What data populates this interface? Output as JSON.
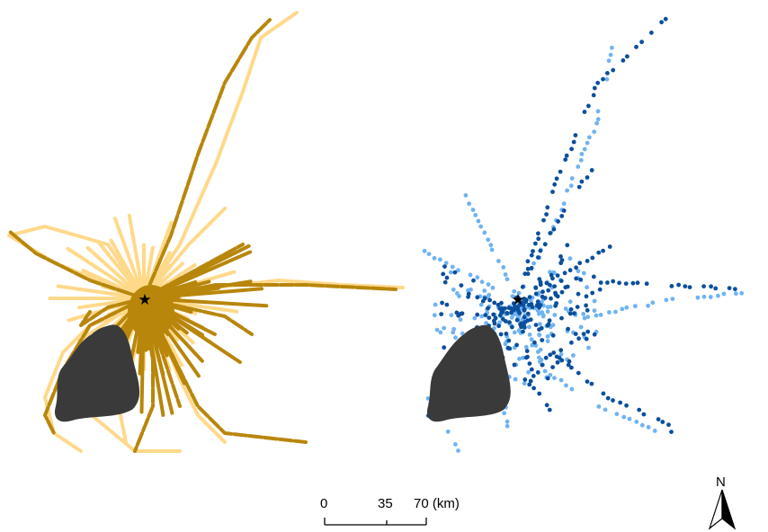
{
  "panels": [
    {
      "name": "left",
      "track_style": "lines",
      "colors": {
        "light": "#FFD98A",
        "dark": "#B8860B"
      },
      "star_symbol": "★"
    },
    {
      "name": "right",
      "track_style": "dots",
      "colors": {
        "light": "#6FB3F2",
        "dark": "#0B4F9C"
      },
      "star_symbol": "★"
    }
  ],
  "island": {
    "color": "#3A3A3A"
  },
  "scale_bar": {
    "ticks": [
      "0",
      "35",
      "70 (km)"
    ],
    "color": "#000000"
  },
  "north_arrow": {
    "label": "N",
    "icon": "north-arrow-icon"
  }
}
